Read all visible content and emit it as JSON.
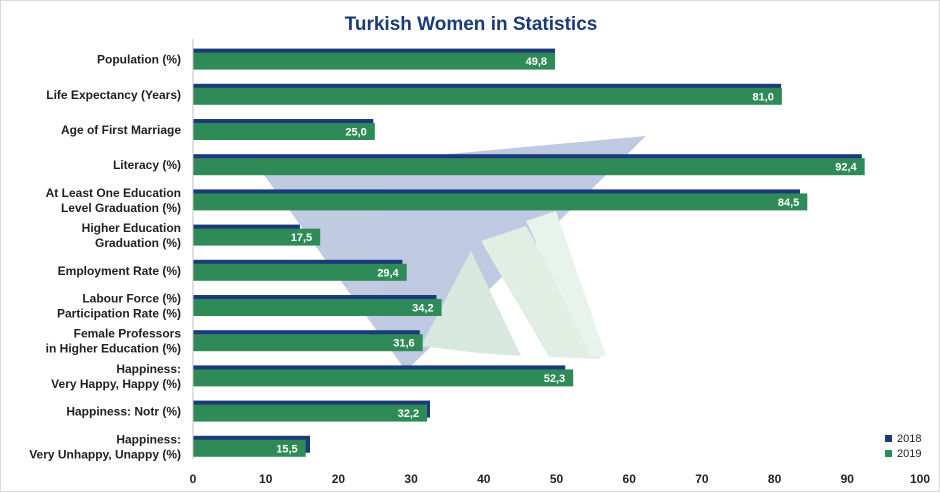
{
  "chart_data": {
    "type": "bar",
    "orientation": "horizontal",
    "title": "Turkish  Women in Statistics",
    "categories": [
      "Population (%)",
      "Life Expectancy (Years)",
      "Age of First Marriage",
      "Literacy (%)",
      "At Least One Education\nLevel Graduation (%)",
      "Higher Education\nGraduation (%)",
      "Employment Rate (%)",
      "Labour Force (%)\nParticipation Rate (%)",
      "Female Professors\nin Higher Education (%)",
      "Happiness:\nVery Happy, Happy (%)",
      "Happiness: Notr (%)",
      "Happiness:\nVery Unhappy, Unappy (%)"
    ],
    "series": [
      {
        "name": "2018",
        "color": "#1b3a7a",
        "values": [
          49.8,
          80.9,
          24.8,
          92.0,
          83.5,
          14.7,
          28.8,
          33.5,
          31.2,
          51.2,
          32.6,
          16.1
        ]
      },
      {
        "name": "2019",
        "color": "#2e8b57",
        "values": [
          49.8,
          81.0,
          25.0,
          92.4,
          84.5,
          17.5,
          29.4,
          34.2,
          31.6,
          52.3,
          32.2,
          15.5
        ]
      }
    ],
    "data_labels_series": "2019",
    "data_labels": [
      "49,8",
      "81,0",
      "25,0",
      "92,4",
      "84,5",
      "17,5",
      "29,4",
      "34,2",
      "31,6",
      "52,3",
      "32,2",
      "15,5"
    ],
    "xlim": [
      0,
      100
    ],
    "x_ticks": [
      0,
      10,
      20,
      30,
      40,
      50,
      60,
      70,
      80,
      90,
      100
    ],
    "grid": false,
    "legend_position": "bottom-right",
    "title_color": "#1b3a7a"
  }
}
